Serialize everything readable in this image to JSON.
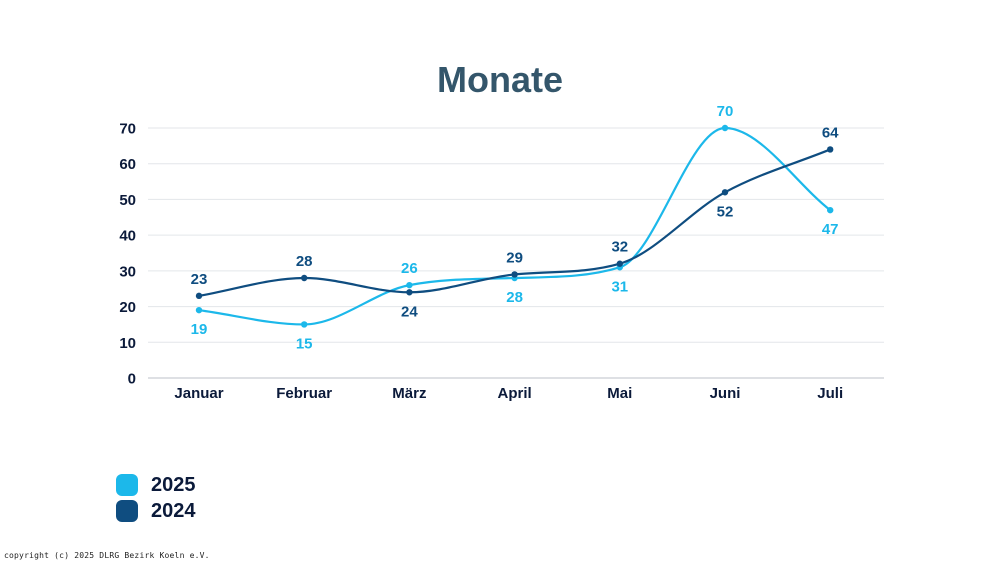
{
  "chart_data": {
    "type": "line",
    "title": "Monate",
    "categories": [
      "Januar",
      "Februar",
      "März",
      "April",
      "Mai",
      "Juni",
      "Juli"
    ],
    "ylim": [
      0,
      70
    ],
    "yticks": [
      0,
      10,
      20,
      30,
      40,
      50,
      60,
      70
    ],
    "grid": true,
    "curve": "smooth",
    "legend_position": "bottom-left",
    "series": [
      {
        "name": "2025",
        "color": "#1cb8ea",
        "values": [
          19,
          15,
          26,
          28,
          31,
          70,
          47
        ]
      },
      {
        "name": "2024",
        "color": "#0f4d80",
        "values": [
          23,
          28,
          24,
          29,
          32,
          52,
          64
        ]
      }
    ]
  },
  "colors": {
    "title": "#34566b",
    "axis_text": "#0b1a3a",
    "grid": "#e3e6ea"
  },
  "copyright": "copyright (c) 2025 DLRG Bezirk Koeln e.V."
}
